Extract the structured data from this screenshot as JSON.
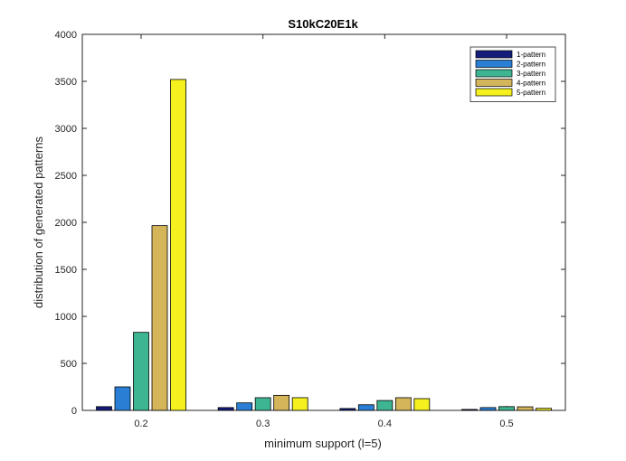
{
  "chart_data": {
    "type": "bar",
    "title": "S10kC20E1k",
    "xlabel": "minimum support (l=5)",
    "ylabel": "distribution of generated patterns",
    "categories": [
      "0.2",
      "0.3",
      "0.4",
      "0.5"
    ],
    "ylim": [
      0,
      4000
    ],
    "yticks": [
      0,
      500,
      1000,
      1500,
      2000,
      2500,
      3000,
      3500,
      4000
    ],
    "grid": false,
    "legend_position": "top-right",
    "series": [
      {
        "name": "1-pattern",
        "color": "#141c7a",
        "values": [
          40,
          30,
          20,
          10
        ]
      },
      {
        "name": "2-pattern",
        "color": "#2a7fd4",
        "values": [
          250,
          80,
          60,
          30
        ]
      },
      {
        "name": "3-pattern",
        "color": "#3eb592",
        "values": [
          830,
          135,
          105,
          40
        ]
      },
      {
        "name": "4-pattern",
        "color": "#d4b55a",
        "values": [
          1965,
          160,
          135,
          38
        ]
      },
      {
        "name": "5-pattern",
        "color": "#f5f01e",
        "values": [
          3520,
          135,
          125,
          22
        ]
      }
    ]
  }
}
